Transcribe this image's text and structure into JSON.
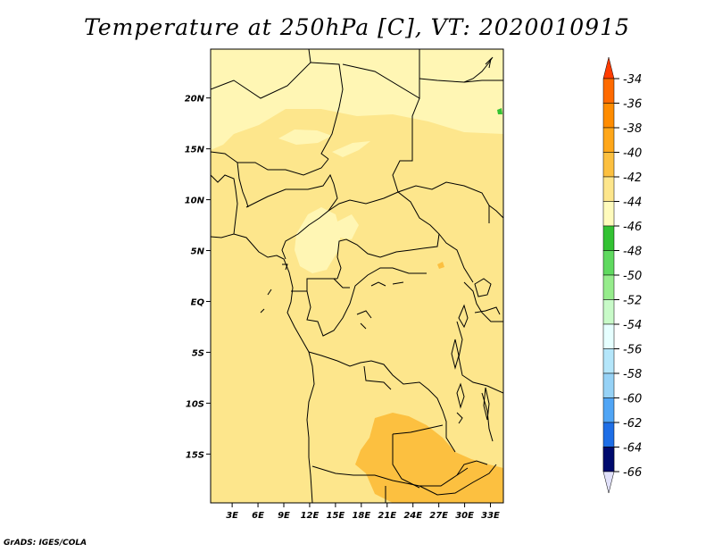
{
  "title": "Temperature at 250hPa [C], VT: 2020010915",
  "footer": "GrADS: IGES/COLA",
  "map": {
    "lat_ticks": [
      {
        "label": "20N",
        "value": 20
      },
      {
        "label": "15N",
        "value": 15
      },
      {
        "label": "10N",
        "value": 10
      },
      {
        "label": "5N",
        "value": 5
      },
      {
        "label": "EQ",
        "value": 0
      },
      {
        "label": "5S",
        "value": -5
      },
      {
        "label": "10S",
        "value": -10
      },
      {
        "label": "15S",
        "value": -15
      }
    ],
    "lon_ticks": [
      {
        "label": "3E",
        "value": 3
      },
      {
        "label": "6E",
        "value": 6
      },
      {
        "label": "9E",
        "value": 9
      },
      {
        "label": "12E",
        "value": 12
      },
      {
        "label": "15E",
        "value": 15
      },
      {
        "label": "18E",
        "value": 18
      },
      {
        "label": "21E",
        "value": 21
      },
      {
        "label": "24E",
        "value": 24
      },
      {
        "label": "27E",
        "value": 27
      },
      {
        "label": "30E",
        "value": 30
      },
      {
        "label": "33E",
        "value": 33
      }
    ],
    "lon_range": [
      0.5,
      34.5
    ],
    "lat_range": [
      -19.8,
      24.8
    ]
  },
  "colorbar": {
    "levels": [
      "-34",
      "-36",
      "-38",
      "-40",
      "-42",
      "-44",
      "-46",
      "-48",
      "-50",
      "-52",
      "-54",
      "-56",
      "-58",
      "-60",
      "-62",
      "-64",
      "-66"
    ],
    "colors": [
      "#ff6a00",
      "#ff8c00",
      "#ffa71a",
      "#fcc040",
      "#fde68c",
      "#fffbbc",
      "#33c233",
      "#5fd95f",
      "#96ec8c",
      "#c8fac8",
      "#e6ffff",
      "#b4e6fa",
      "#96d2f6",
      "#50a5f5",
      "#1e6ee6",
      "#1450d2",
      "#0a32b4",
      "#000a6e"
    ],
    "top_color": "#ff3c00",
    "bottom_color": "#e1e1fa"
  },
  "field_colors": {
    "background": "#fde68c",
    "warm": "#fcc040",
    "cool": "#fff6b4",
    "green": "#33c233"
  }
}
